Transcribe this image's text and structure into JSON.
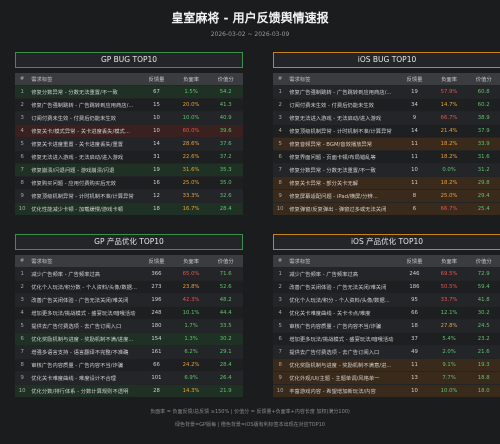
{
  "header": {
    "title": "皇室麻将 - 用户反馈舆情速报",
    "date_range": "2026-03-02 ~ 2026-03-09"
  },
  "columns": {
    "rank": "#",
    "tag": "需求标签",
    "volume": "反馈量",
    "negative": "负面率",
    "value": "价值分"
  },
  "colors": {
    "gp_border": "#3e8e4e",
    "ios_border": "#c8821e",
    "negative_high": "#e2564d",
    "negative_mid": "#e5a13a",
    "negative_low": "#5fc46b",
    "value_score": "#5fc46b"
  },
  "panels": [
    {
      "id": "gp-bug",
      "title": "GP  BUG TOP10",
      "rows": [
        {
          "rank": "1",
          "tag": "修复分数异常 - 分数无法重置/不一致",
          "volume": "67",
          "negative": "1.5%",
          "value": "54.2",
          "neg_level": "green",
          "row_hl": "green"
        },
        {
          "rank": "2",
          "tag": "修复广告强制跳转 - 广告跳转到应用商店/...",
          "volume": "15",
          "negative": "20.0%",
          "value": "41.3",
          "neg_level": "orange",
          "row_hl": ""
        },
        {
          "rank": "3",
          "tag": "订阅付费未生效 - 付费后仍能未生效",
          "volume": "10",
          "negative": "10.0%",
          "value": "40.9",
          "neg_level": "green",
          "row_hl": ""
        },
        {
          "rank": "4",
          "tag": "修复关卡/模式异常 - 关卡进度丢失/模式...",
          "volume": "10",
          "negative": "60.0%",
          "value": "39.6",
          "neg_level": "red",
          "row_hl": "red"
        },
        {
          "rank": "5",
          "tag": "修复关卡进度重置 - 关卡进度丢失/重置",
          "volume": "14",
          "negative": "28.6%",
          "value": "37.6",
          "neg_level": "orange",
          "row_hl": ""
        },
        {
          "rank": "6",
          "tag": "修复无法进入游戏 - 无法启动/进入游戏",
          "volume": "31",
          "negative": "22.6%",
          "value": "37.2",
          "neg_level": "orange",
          "row_hl": ""
        },
        {
          "rank": "7",
          "tag": "修复崩溃/闪退问题 - 游戏崩溃/闪退",
          "volume": "19",
          "negative": "31.6%",
          "value": "35.3",
          "neg_level": "orange",
          "row_hl": "green"
        },
        {
          "rank": "8",
          "tag": "修复购买问题 - 应用付费购买后无效",
          "volume": "16",
          "negative": "25.0%",
          "value": "35.0",
          "neg_level": "orange",
          "row_hl": ""
        },
        {
          "rank": "9",
          "tag": "修复顶级机制异常 - 计时机制不准/计算异常",
          "volume": "12",
          "negative": "33.3%",
          "value": "32.6",
          "neg_level": "orange",
          "row_hl": ""
        },
        {
          "rank": "10",
          "tag": "优化性能减少卡顿 - 加载缓慢/游戏卡顿",
          "volume": "18",
          "negative": "16.7%",
          "value": "28.4",
          "neg_level": "orange",
          "row_hl": "green"
        }
      ]
    },
    {
      "id": "ios-bug",
      "title": "iOS  BUG TOP10",
      "rows": [
        {
          "rank": "1",
          "tag": "修复广告强制跳转 - 广告跳转到应用商店/...",
          "volume": "19",
          "negative": "57.9%",
          "value": "60.8",
          "neg_level": "red",
          "row_hl": ""
        },
        {
          "rank": "2",
          "tag": "订阅付费未生效 - 付费后仍能未生效",
          "volume": "34",
          "negative": "14.7%",
          "value": "60.2",
          "neg_level": "orange",
          "row_hl": ""
        },
        {
          "rank": "3",
          "tag": "修复无法进入游戏 - 无法启动/进入游戏",
          "volume": "9",
          "negative": "66.7%",
          "value": "38.9",
          "neg_level": "red",
          "row_hl": ""
        },
        {
          "rank": "4",
          "tag": "修复顶级机制异常 - 计时机制不准/计算异常",
          "volume": "14",
          "negative": "21.4%",
          "value": "37.9",
          "neg_level": "orange",
          "row_hl": ""
        },
        {
          "rank": "5",
          "tag": "修复音频异常 - BGM/音效播放异常",
          "volume": "11",
          "negative": "18.2%",
          "value": "33.9",
          "neg_level": "orange",
          "row_hl": "orange"
        },
        {
          "rank": "6",
          "tag": "修复界面问题 - 页面卡顿/布局错乱等",
          "volume": "11",
          "negative": "18.2%",
          "value": "31.6",
          "neg_level": "orange",
          "row_hl": ""
        },
        {
          "rank": "7",
          "tag": "修复分数异常 - 分数无法重置/不一致",
          "volume": "10",
          "negative": "0.0%",
          "value": "31.2",
          "neg_level": "green",
          "row_hl": ""
        },
        {
          "rank": "8",
          "tag": "修复关卡异常 - 部分关卡无解",
          "volume": "11",
          "negative": "18.2%",
          "value": "29.8",
          "neg_level": "orange",
          "row_hl": "orange"
        },
        {
          "rank": "9",
          "tag": "修复屏幕适配问题 - iPad/横屏/分辨...",
          "volume": "8",
          "negative": "25.0%",
          "value": "29.4",
          "neg_level": "orange",
          "row_hl": "orange"
        },
        {
          "rank": "10",
          "tag": "修复弹窗/反复弹出 - 弹窗过多或无法关闭",
          "volume": "6",
          "negative": "66.7%",
          "value": "25.4",
          "neg_level": "red",
          "row_hl": "orange"
        }
      ]
    },
    {
      "id": "gp-opt",
      "title": "GP  产品优化 TOP10",
      "rows": [
        {
          "rank": "1",
          "tag": "减少广告频率 - 广告频率过高",
          "volume": "366",
          "negative": "65.0%",
          "value": "71.6",
          "neg_level": "red",
          "row_hl": ""
        },
        {
          "rank": "2",
          "tag": "优化个人玩法/积分数 - 个人资料/头像/数据...",
          "volume": "273",
          "negative": "23.8%",
          "value": "52.6",
          "neg_level": "orange",
          "row_hl": ""
        },
        {
          "rank": "3",
          "tag": "改善广告关闭体验 - 广告无法关闭/难关闭",
          "volume": "196",
          "negative": "42.3%",
          "value": "48.2",
          "neg_level": "red",
          "row_hl": ""
        },
        {
          "rank": "4",
          "tag": "增加更多玩法/挑战模式 - 盛宴玩法/暗哦活动",
          "volume": "248",
          "negative": "10.1%",
          "value": "44.4",
          "neg_level": "green",
          "row_hl": ""
        },
        {
          "rank": "5",
          "tag": "提供去广告付费选项 - 去广告订阅入口",
          "volume": "180",
          "negative": "1.7%",
          "value": "33.5",
          "neg_level": "green",
          "row_hl": ""
        },
        {
          "rank": "6",
          "tag": "优化奖励机制与进度 - 奖励机制不满/进度...",
          "volume": "154",
          "negative": "1.3%",
          "value": "30.2",
          "neg_level": "green",
          "row_hl": "green"
        },
        {
          "rank": "7",
          "tag": "增强多语言支持 - 语言翻译不完整/不准确",
          "volume": "161",
          "negative": "6.2%",
          "value": "29.1",
          "neg_level": "green",
          "row_hl": ""
        },
        {
          "rank": "8",
          "tag": "审核广告内容质量 - 广告内容不当/诈骗",
          "volume": "66",
          "negative": "24.2%",
          "value": "28.4",
          "neg_level": "orange",
          "row_hl": ""
        },
        {
          "rank": "9",
          "tag": "优化关卡难度曲线 - 难度设计不合理",
          "volume": "101",
          "negative": "6.9%",
          "value": "26.4",
          "neg_level": "green",
          "row_hl": ""
        },
        {
          "rank": "10",
          "tag": "优化分数/排行体系 - 分数计算规则不透明",
          "volume": "28",
          "negative": "14.3%",
          "value": "21.9",
          "neg_level": "orange",
          "row_hl": "green"
        }
      ]
    },
    {
      "id": "ios-opt",
      "title": "iOS  产品优化 TOP10",
      "rows": [
        {
          "rank": "1",
          "tag": "减少广告频率 - 广告频率过高",
          "volume": "246",
          "negative": "69.5%",
          "value": "72.9",
          "neg_level": "red",
          "row_hl": ""
        },
        {
          "rank": "2",
          "tag": "改善广告关闭体验 - 广告无法关闭/难关闭",
          "volume": "186",
          "negative": "50.5%",
          "value": "59.4",
          "neg_level": "red",
          "row_hl": ""
        },
        {
          "rank": "3",
          "tag": "优化个人玩法/积分 - 个人资料/头像/数据...",
          "volume": "95",
          "negative": "33.7%",
          "value": "41.8",
          "neg_level": "red",
          "row_hl": ""
        },
        {
          "rank": "4",
          "tag": "优化关卡难度曲线 - 关卡卡点/难度",
          "volume": "66",
          "negative": "12.1%",
          "value": "30.2",
          "neg_level": "green",
          "row_hl": ""
        },
        {
          "rank": "5",
          "tag": "审核广告内容质量 - 广告内容不当/诈骗",
          "volume": "18",
          "negative": "27.8%",
          "value": "24.5",
          "neg_level": "orange",
          "row_hl": ""
        },
        {
          "rank": "6",
          "tag": "增加更多玩法/挑战模式 - 盛宴玩法/暗哦活动",
          "volume": "37",
          "negative": "5.4%",
          "value": "23.2",
          "neg_level": "green",
          "row_hl": ""
        },
        {
          "rank": "7",
          "tag": "提供去广告付费选项 - 去广告订阅入口",
          "volume": "49",
          "negative": "2.0%",
          "value": "21.6",
          "neg_level": "green",
          "row_hl": ""
        },
        {
          "rank": "8",
          "tag": "优化奖励机制与进度 - 奖励机制不满意/进...",
          "volume": "11",
          "negative": "9.1%",
          "value": "19.3",
          "neg_level": "green",
          "row_hl": "orange"
        },
        {
          "rank": "9",
          "tag": "优化外观/UI/主题 - 主题单调/风格单一",
          "volume": "13",
          "negative": "7.7%",
          "value": "18.8",
          "neg_level": "green",
          "row_hl": "orange"
        },
        {
          "rank": "10",
          "tag": "丰富游戏内容 - 希望增加新玩法/内容",
          "volume": "10",
          "negative": "10.0%",
          "value": "18.0",
          "neg_level": "green",
          "row_hl": "orange"
        }
      ]
    }
  ],
  "footer": {
    "line1": "负面率 = 负面反馈/总反馈 ≥150% | 价值分 = 反馈量+负面率+内容长度 加权(满分100)",
    "line2": "绿色背景=GP版每  |  橙色背景=iOS版有利标签本出现在对应TOP10"
  }
}
